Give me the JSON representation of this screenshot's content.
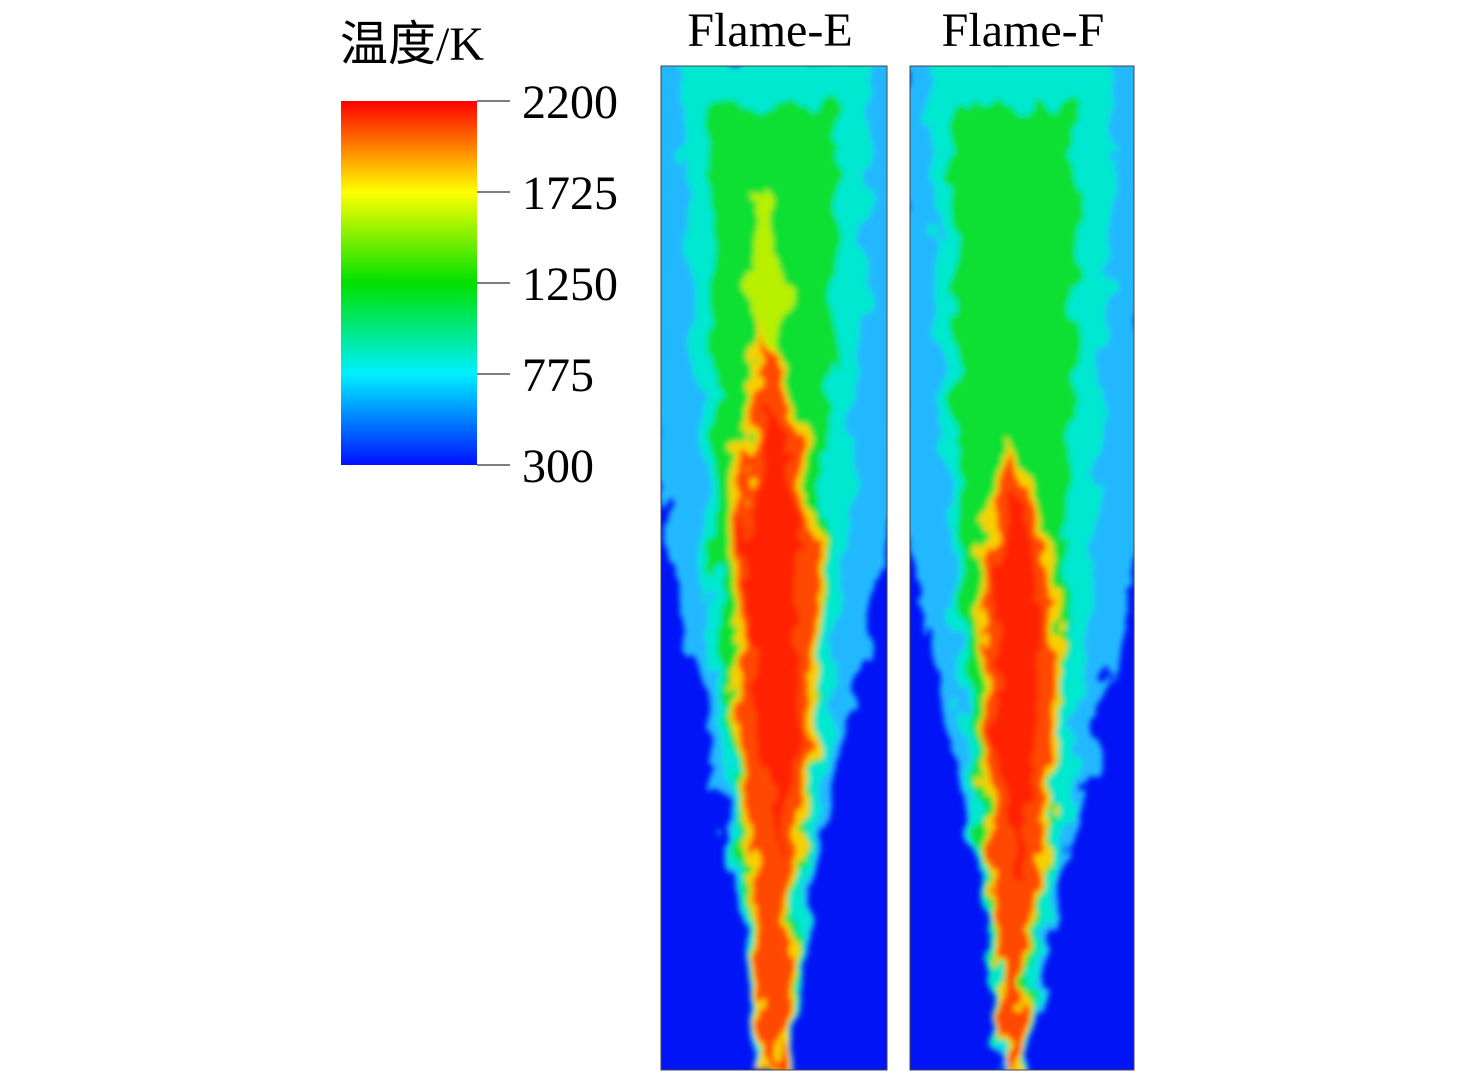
{
  "colorbar": {
    "title": "温度/K",
    "lim": [
      300,
      2200
    ],
    "ticks": [
      2200,
      1725,
      1250,
      775,
      300
    ]
  },
  "panels": [
    {
      "title": "Flame-E"
    },
    {
      "title": "Flame-F"
    }
  ]
}
